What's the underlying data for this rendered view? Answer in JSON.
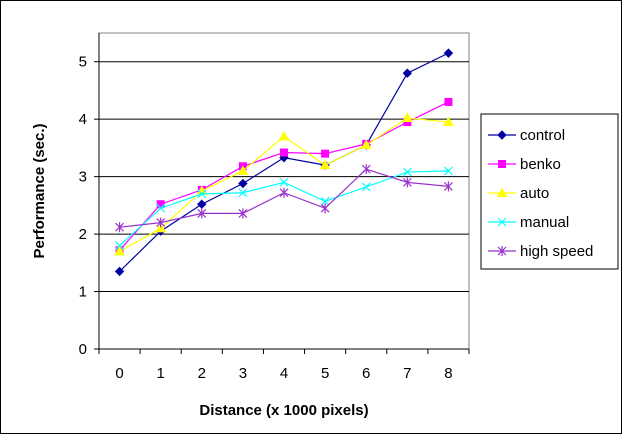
{
  "chart_data": {
    "type": "line",
    "title": "",
    "xlabel": "Distance (x 1000 pixels)",
    "ylabel": "Performance (sec.)",
    "categories": [
      "0",
      "1",
      "2",
      "3",
      "4",
      "5",
      "6",
      "7",
      "8"
    ],
    "ylim": [
      0,
      5.5
    ],
    "yticks": [
      "0",
      "1",
      "2",
      "3",
      "4",
      "5"
    ],
    "grid": "horizontal major gridlines",
    "legend_position": "right",
    "series": [
      {
        "name": "control",
        "color": "#0000a0",
        "marker": "diamond",
        "values": [
          1.35,
          2.05,
          2.52,
          2.88,
          3.33,
          3.2,
          3.55,
          4.8,
          5.15
        ]
      },
      {
        "name": "benko",
        "color": "#ff00ff",
        "marker": "square",
        "values": [
          1.72,
          2.52,
          2.77,
          3.18,
          3.42,
          3.4,
          3.57,
          3.95,
          4.3
        ]
      },
      {
        "name": "auto",
        "color": "#ffff00",
        "marker": "triangle",
        "values": [
          1.7,
          2.1,
          2.75,
          3.1,
          3.7,
          3.2,
          3.55,
          4.02,
          3.95
        ]
      },
      {
        "name": "manual",
        "color": "#00ffff",
        "marker": "x",
        "values": [
          1.8,
          2.45,
          2.7,
          2.72,
          2.9,
          2.57,
          2.82,
          3.08,
          3.1
        ]
      },
      {
        "name": "high speed",
        "color": "#9933cc",
        "marker": "star",
        "values": [
          2.12,
          2.2,
          2.36,
          2.36,
          2.72,
          2.45,
          3.13,
          2.9,
          2.83
        ]
      }
    ]
  }
}
